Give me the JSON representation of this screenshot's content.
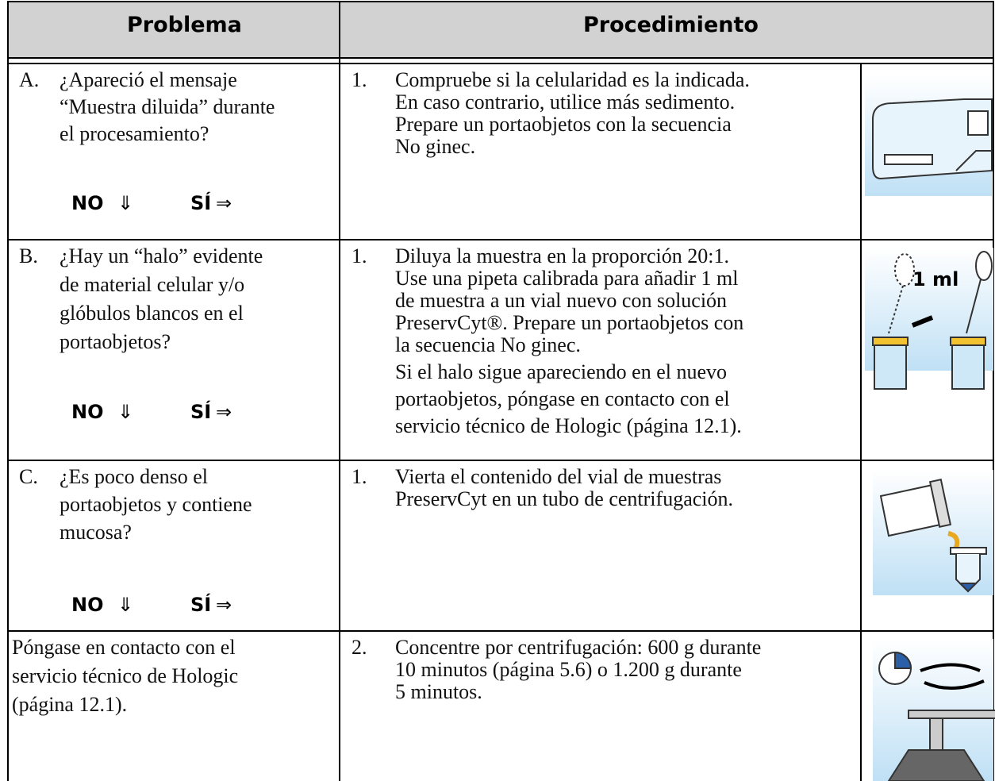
{
  "header": {
    "problem": "Problema",
    "procedure": "Procedimiento"
  },
  "rows": [
    {
      "problem": {
        "letter": "A.",
        "lines": [
          "¿Apareció el mensaje",
          "“Muestra diluida” durante",
          "el procesamiento?"
        ]
      },
      "no": "NO",
      "down_arrow": "⇓",
      "yes": "SÍ",
      "right_arrow": "⇒",
      "step": {
        "number": "1.",
        "lines": [
          "Compruebe si la celularidad es la indicada.",
          "En caso contrario, utilice más sedimento.",
          "Prepare un portaobjetos con la secuencia",
          "No ginec."
        ]
      }
    },
    {
      "problem": {
        "letter": "B.",
        "lines": [
          "¿Hay un “halo” evidente",
          "de material celular y/o",
          "glóbulos blancos en el",
          "portaobjetos?"
        ]
      },
      "no": "NO",
      "down_arrow": "⇓",
      "yes": "SÍ",
      "right_arrow": "⇒",
      "step": {
        "number": "1.",
        "lines": [
          "Diluya la muestra en la proporción 20:1.",
          "Use una pipeta calibrada para añadir 1 ml",
          "de muestra a un vial nuevo con solución",
          "PreservCyt®. Prepare un portaobjetos con",
          "la secuencia No ginec.",
          "Si el halo sigue apareciendo en el nuevo",
          "portaobjetos, póngase en contacto con el",
          "servicio técnico de Hologic (página 12.1)."
        ]
      },
      "image_label": "1 ml"
    },
    {
      "problem": {
        "letter": "C.",
        "lines": [
          "¿Es poco denso el",
          "portaobjetos y contiene",
          "mucosa?"
        ]
      },
      "no": "NO",
      "down_arrow": "⇓",
      "yes": "SÍ",
      "right_arrow": "⇒",
      "step": {
        "number": "1.",
        "lines": [
          "Vierta el contenido del vial de muestras",
          "PreservCyt en un tubo de centrifugación."
        ]
      }
    },
    {
      "problem": {
        "lines": [
          "Póngase en contacto con el",
          "servicio técnico de Hologic",
          "(página 12.1)."
        ]
      },
      "step": {
        "number": "2.",
        "lines": [
          "Concentre por centrifugación: 600 g durante",
          "10 minutos (página 5.6) o 1.200 g durante",
          "5 minutos."
        ]
      }
    }
  ]
}
